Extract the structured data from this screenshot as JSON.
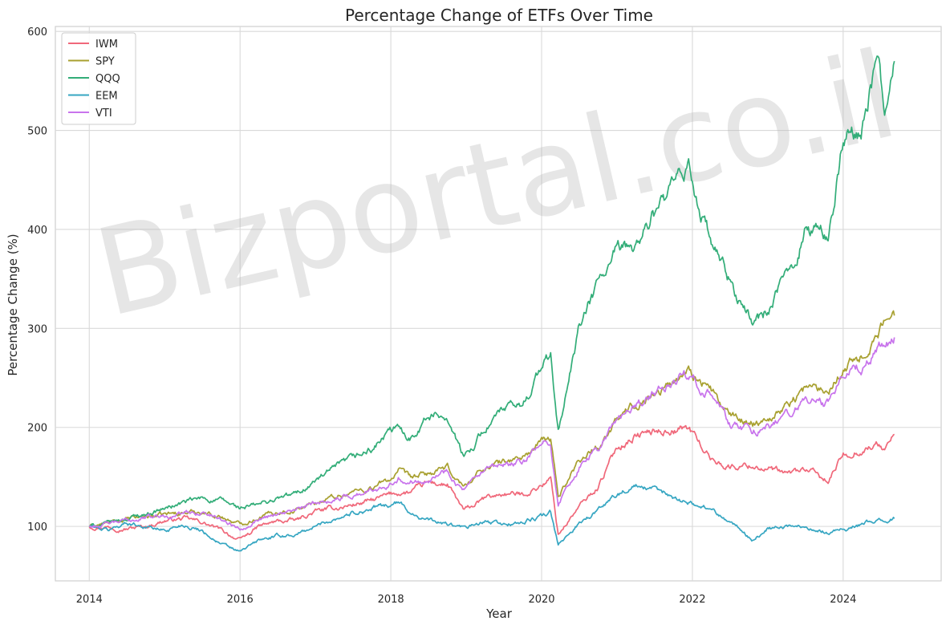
{
  "chart_data": {
    "type": "line",
    "title": "Percentage Change of ETFs Over Time",
    "xlabel": "Year",
    "ylabel": "Percentage Change (%)",
    "xlim": [
      2013.55,
      2025.3
    ],
    "ylim": [
      45,
      605
    ],
    "xticks": [
      2014,
      2016,
      2018,
      2020,
      2022,
      2024
    ],
    "yticks": [
      100,
      200,
      300,
      400,
      500,
      600
    ],
    "grid": true,
    "legend": "top-left",
    "watermark": "Bizportal.co.il",
    "x": [
      2014.0,
      2014.25,
      2014.5,
      2014.75,
      2015.0,
      2015.25,
      2015.5,
      2015.75,
      2016.0,
      2016.25,
      2016.5,
      2016.75,
      2017.0,
      2017.25,
      2017.5,
      2017.75,
      2018.0,
      2018.1,
      2018.25,
      2018.5,
      2018.75,
      2018.97,
      2019.25,
      2019.5,
      2019.75,
      2020.0,
      2020.12,
      2020.22,
      2020.5,
      2020.75,
      2021.0,
      2021.25,
      2021.5,
      2021.75,
      2021.95,
      2022.25,
      2022.5,
      2022.8,
      2023.0,
      2023.25,
      2023.5,
      2023.8,
      2024.0,
      2024.25,
      2024.45,
      2024.55,
      2024.68
    ],
    "series": [
      {
        "name": "IWM",
        "color": "#f0687a",
        "values": [
          100,
          100,
          98,
          100,
          106,
          108,
          104,
          96,
          86,
          100,
          105,
          106,
          115,
          118,
          122,
          126,
          132,
          134,
          134,
          144,
          142,
          115,
          128,
          133,
          132,
          142,
          148,
          92,
          120,
          140,
          180,
          192,
          196,
          198,
          200,
          168,
          160,
          162,
          158,
          152,
          158,
          145,
          172,
          178,
          182,
          178,
          193
        ]
      },
      {
        "name": "SPY",
        "color": "#a8a030",
        "values": [
          100,
          103,
          107,
          110,
          112,
          114,
          115,
          110,
          102,
          110,
          115,
          117,
          124,
          130,
          135,
          139,
          148,
          156,
          148,
          153,
          158,
          140,
          160,
          165,
          170,
          185,
          188,
          130,
          168,
          182,
          206,
          225,
          235,
          245,
          260,
          237,
          210,
          205,
          210,
          222,
          240,
          238,
          262,
          272,
          295,
          305,
          313
        ]
      },
      {
        "name": "QQQ",
        "color": "#32ad78",
        "values": [
          100,
          103,
          108,
          113,
          118,
          124,
          128,
          126,
          118,
          122,
          128,
          133,
          146,
          158,
          168,
          178,
          196,
          198,
          190,
          212,
          212,
          168,
          200,
          218,
          222,
          262,
          272,
          195,
          300,
          345,
          375,
          385,
          415,
          440,
          460,
          385,
          345,
          305,
          318,
          350,
          400,
          395,
          485,
          505,
          570,
          520,
          570
        ]
      },
      {
        "name": "EEM",
        "color": "#36a6c2",
        "values": [
          100,
          96,
          104,
          100,
          96,
          102,
          96,
          82,
          74,
          86,
          90,
          92,
          100,
          108,
          114,
          118,
          122,
          124,
          115,
          106,
          102,
          98,
          104,
          102,
          104,
          110,
          114,
          80,
          104,
          116,
          134,
          140,
          136,
          130,
          124,
          118,
          105,
          86,
          98,
          100,
          100,
          94,
          98,
          102,
          106,
          105,
          108
        ]
      },
      {
        "name": "VTI",
        "color": "#c874ec",
        "values": [
          100,
          102,
          106,
          109,
          111,
          113,
          114,
          108,
          98,
          108,
          114,
          116,
          123,
          128,
          132,
          136,
          145,
          150,
          145,
          150,
          156,
          136,
          155,
          160,
          165,
          182,
          185,
          122,
          160,
          178,
          208,
          222,
          234,
          244,
          255,
          232,
          203,
          196,
          200,
          212,
          228,
          222,
          252,
          262,
          283,
          282,
          291
        ]
      }
    ]
  }
}
